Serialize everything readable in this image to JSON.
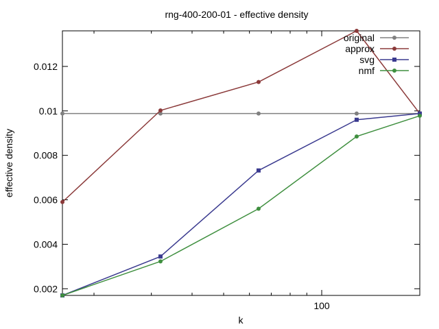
{
  "chart_data": {
    "type": "line",
    "title": "rng-400-200-01 - effective density",
    "xlabel": "k",
    "ylabel": "effective density",
    "x_scale": "log",
    "xlim": [
      16,
      200
    ],
    "ylim": [
      0.0017,
      0.0136
    ],
    "x_ticks": [
      {
        "value": 100,
        "label": "100"
      }
    ],
    "x_minor_ticks": [
      20,
      30,
      40,
      50,
      60,
      70,
      80,
      90,
      200
    ],
    "y_ticks": [
      {
        "value": 0.002,
        "label": "0.002"
      },
      {
        "value": 0.004,
        "label": "0.004"
      },
      {
        "value": 0.006,
        "label": "0.006"
      },
      {
        "value": 0.008,
        "label": "0.008"
      },
      {
        "value": 0.01,
        "label": "0.01"
      },
      {
        "value": 0.012,
        "label": "0.012"
      }
    ],
    "grid": false,
    "legend_position": "top-right",
    "x": [
      16,
      32,
      64,
      128,
      200
    ],
    "series": [
      {
        "name": "original",
        "color": "#808080",
        "marker": "circle",
        "values": [
          0.00988,
          0.00988,
          0.00988,
          0.00988,
          0.00988
        ]
      },
      {
        "name": "approx",
        "color": "#8b3a3a",
        "marker": "circle",
        "values": [
          0.0059,
          0.01002,
          0.0113,
          0.0136,
          0.00988
        ]
      },
      {
        "name": "svg",
        "color": "#3a3a8f",
        "marker": "square",
        "values": [
          0.0017,
          0.00345,
          0.00732,
          0.0096,
          0.00988
        ]
      },
      {
        "name": "nmf",
        "color": "#3f8f3f",
        "marker": "circle",
        "values": [
          0.0017,
          0.00323,
          0.0056,
          0.00885,
          0.00978
        ]
      }
    ]
  }
}
